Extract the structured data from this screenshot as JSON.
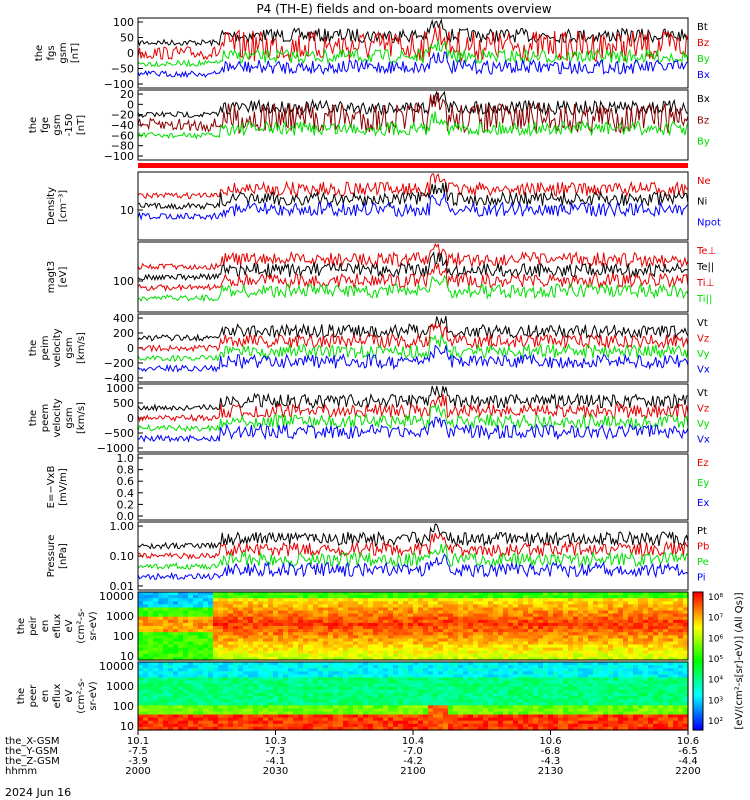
{
  "title": "P4 (TH-E) fields and on-board moments overview",
  "date_label": "2024 Jun 16",
  "colors": {
    "black": "#000000",
    "red": "#e60000",
    "green": "#00e000",
    "blue": "#0000ff",
    "darkred": "#8b0000",
    "sep": "#ff0000"
  },
  "footer": {
    "row_labels": [
      "the_X-GSM",
      "the_Y-GSM",
      "the_Z-GSM",
      "hhmm"
    ],
    "columns": [
      {
        "x_pos": "10.1",
        "y_pos": "-7.5",
        "z_pos": "-3.9",
        "hhmm": "2000"
      },
      {
        "x_pos": "10.3",
        "y_pos": "-7.3",
        "z_pos": "-4.1",
        "hhmm": "2030"
      },
      {
        "x_pos": "10.4",
        "y_pos": "-7.0",
        "z_pos": "-4.2",
        "hhmm": "2100"
      },
      {
        "x_pos": "10.6",
        "y_pos": "-6.8",
        "z_pos": "-4.3",
        "hhmm": "2130"
      },
      {
        "x_pos": "10.6",
        "y_pos": "-6.5",
        "z_pos": "-4.4",
        "hhmm": "2200"
      }
    ]
  },
  "colorbar": {
    "ticks": [
      "10⁸",
      "10⁷",
      "10⁶",
      "10⁵",
      "10⁴",
      "10³",
      "10²"
    ],
    "label": "[eV/(cm²-s[sr]-eV)] (All Qs)]"
  },
  "chart_data": [
    {
      "type": "line",
      "ylabel": [
        "the",
        "fgs",
        "gsm",
        "[nT]"
      ],
      "ylim": [
        -100,
        100
      ],
      "y_ticks": [
        "100",
        "50",
        "0",
        "−50",
        "−100"
      ],
      "series": [
        {
          "name": "Bt",
          "color": "#000000"
        },
        {
          "name": "Bz",
          "color": "#e60000"
        },
        {
          "name": "By",
          "color": "#00e000"
        },
        {
          "name": "Bx",
          "color": "#0000ff"
        }
      ]
    },
    {
      "type": "line",
      "ylabel": [
        "the",
        "fge",
        "gsm",
        "-150",
        "[nT]"
      ],
      "ylim": [
        -110,
        25
      ],
      "y_ticks": [
        "20",
        "0",
        "−20",
        "−40",
        "−60",
        "−80",
        "−100"
      ],
      "series": [
        {
          "name": "Bx",
          "color": "#000000"
        },
        {
          "name": "Bz",
          "color": "#8b0000"
        },
        {
          "name": "By",
          "color": "#00e000"
        }
      ]
    },
    {
      "type": "line",
      "ylabel": [
        "Density",
        "[cm⁻³]"
      ],
      "log": true,
      "y_ticks": [
        "10"
      ],
      "series": [
        {
          "name": "Ne",
          "color": "#e60000"
        },
        {
          "name": "Ni",
          "color": "#000000"
        },
        {
          "name": "Npot",
          "color": "#0000ff"
        }
      ]
    },
    {
      "type": "line",
      "ylabel": [
        "magt3",
        "[eV]"
      ],
      "log": true,
      "y_ticks": [
        "100"
      ],
      "series": [
        {
          "name": "Te⊥",
          "color": "#e60000"
        },
        {
          "name": "Te||",
          "color": "#000000"
        },
        {
          "name": "Ti⊥",
          "color": "#e60000"
        },
        {
          "name": "Ti||",
          "color": "#00e000"
        }
      ]
    },
    {
      "type": "line",
      "ylabel": [
        "the",
        "peim",
        "velocity",
        "gsm",
        "[km/s]"
      ],
      "ylim": [
        -400,
        400
      ],
      "y_ticks": [
        "400",
        "200",
        "0",
        "−200",
        "−400"
      ],
      "series": [
        {
          "name": "Vt",
          "color": "#000000"
        },
        {
          "name": "Vz",
          "color": "#e60000"
        },
        {
          "name": "Vy",
          "color": "#00e000"
        },
        {
          "name": "Vx",
          "color": "#0000ff"
        }
      ]
    },
    {
      "type": "line",
      "ylabel": [
        "the",
        "peem",
        "velocity",
        "gsm",
        "[km/s]"
      ],
      "ylim": [
        -1000,
        1000
      ],
      "y_ticks": [
        "1000",
        "500",
        "0",
        "−500",
        "−1000"
      ],
      "series": [
        {
          "name": "Vt",
          "color": "#000000"
        },
        {
          "name": "Vz",
          "color": "#e60000"
        },
        {
          "name": "Vy",
          "color": "#00e000"
        },
        {
          "name": "Vx",
          "color": "#0000ff"
        }
      ]
    },
    {
      "type": "line",
      "ylabel": [
        "E=−VxB",
        "[mV/m]"
      ],
      "ylim": [
        0,
        1
      ],
      "y_ticks": [
        "1.0",
        "0.8",
        "0.6",
        "0.4",
        "0.2",
        "0.0"
      ],
      "series": [
        {
          "name": "Ez",
          "color": "#e60000"
        },
        {
          "name": "Ey",
          "color": "#00e000"
        },
        {
          "name": "Ex",
          "color": "#0000ff"
        }
      ]
    },
    {
      "type": "line",
      "ylabel": [
        "Pressure",
        "[nPa]"
      ],
      "log": true,
      "y_ticks": [
        "1.00",
        "0.10",
        "0.01"
      ],
      "series": [
        {
          "name": "Pt",
          "color": "#000000"
        },
        {
          "name": "Pb",
          "color": "#e60000"
        },
        {
          "name": "Pe",
          "color": "#00e000"
        },
        {
          "name": "Pi",
          "color": "#0000ff"
        }
      ]
    },
    {
      "type": "heatmap",
      "ylabel": [
        "the",
        "peir",
        "en",
        "eflux",
        "eV",
        "(cm²-s-",
        "sr-eV)"
      ],
      "y_ticks": [
        "10000",
        "1000",
        "100",
        "10"
      ]
    },
    {
      "type": "heatmap",
      "ylabel": [
        "the",
        "peer",
        "en",
        "eflux",
        "eV",
        "(cm²-s-",
        "sr-eV)"
      ],
      "y_ticks": [
        "10000",
        "1000",
        "100",
        "10"
      ]
    }
  ]
}
